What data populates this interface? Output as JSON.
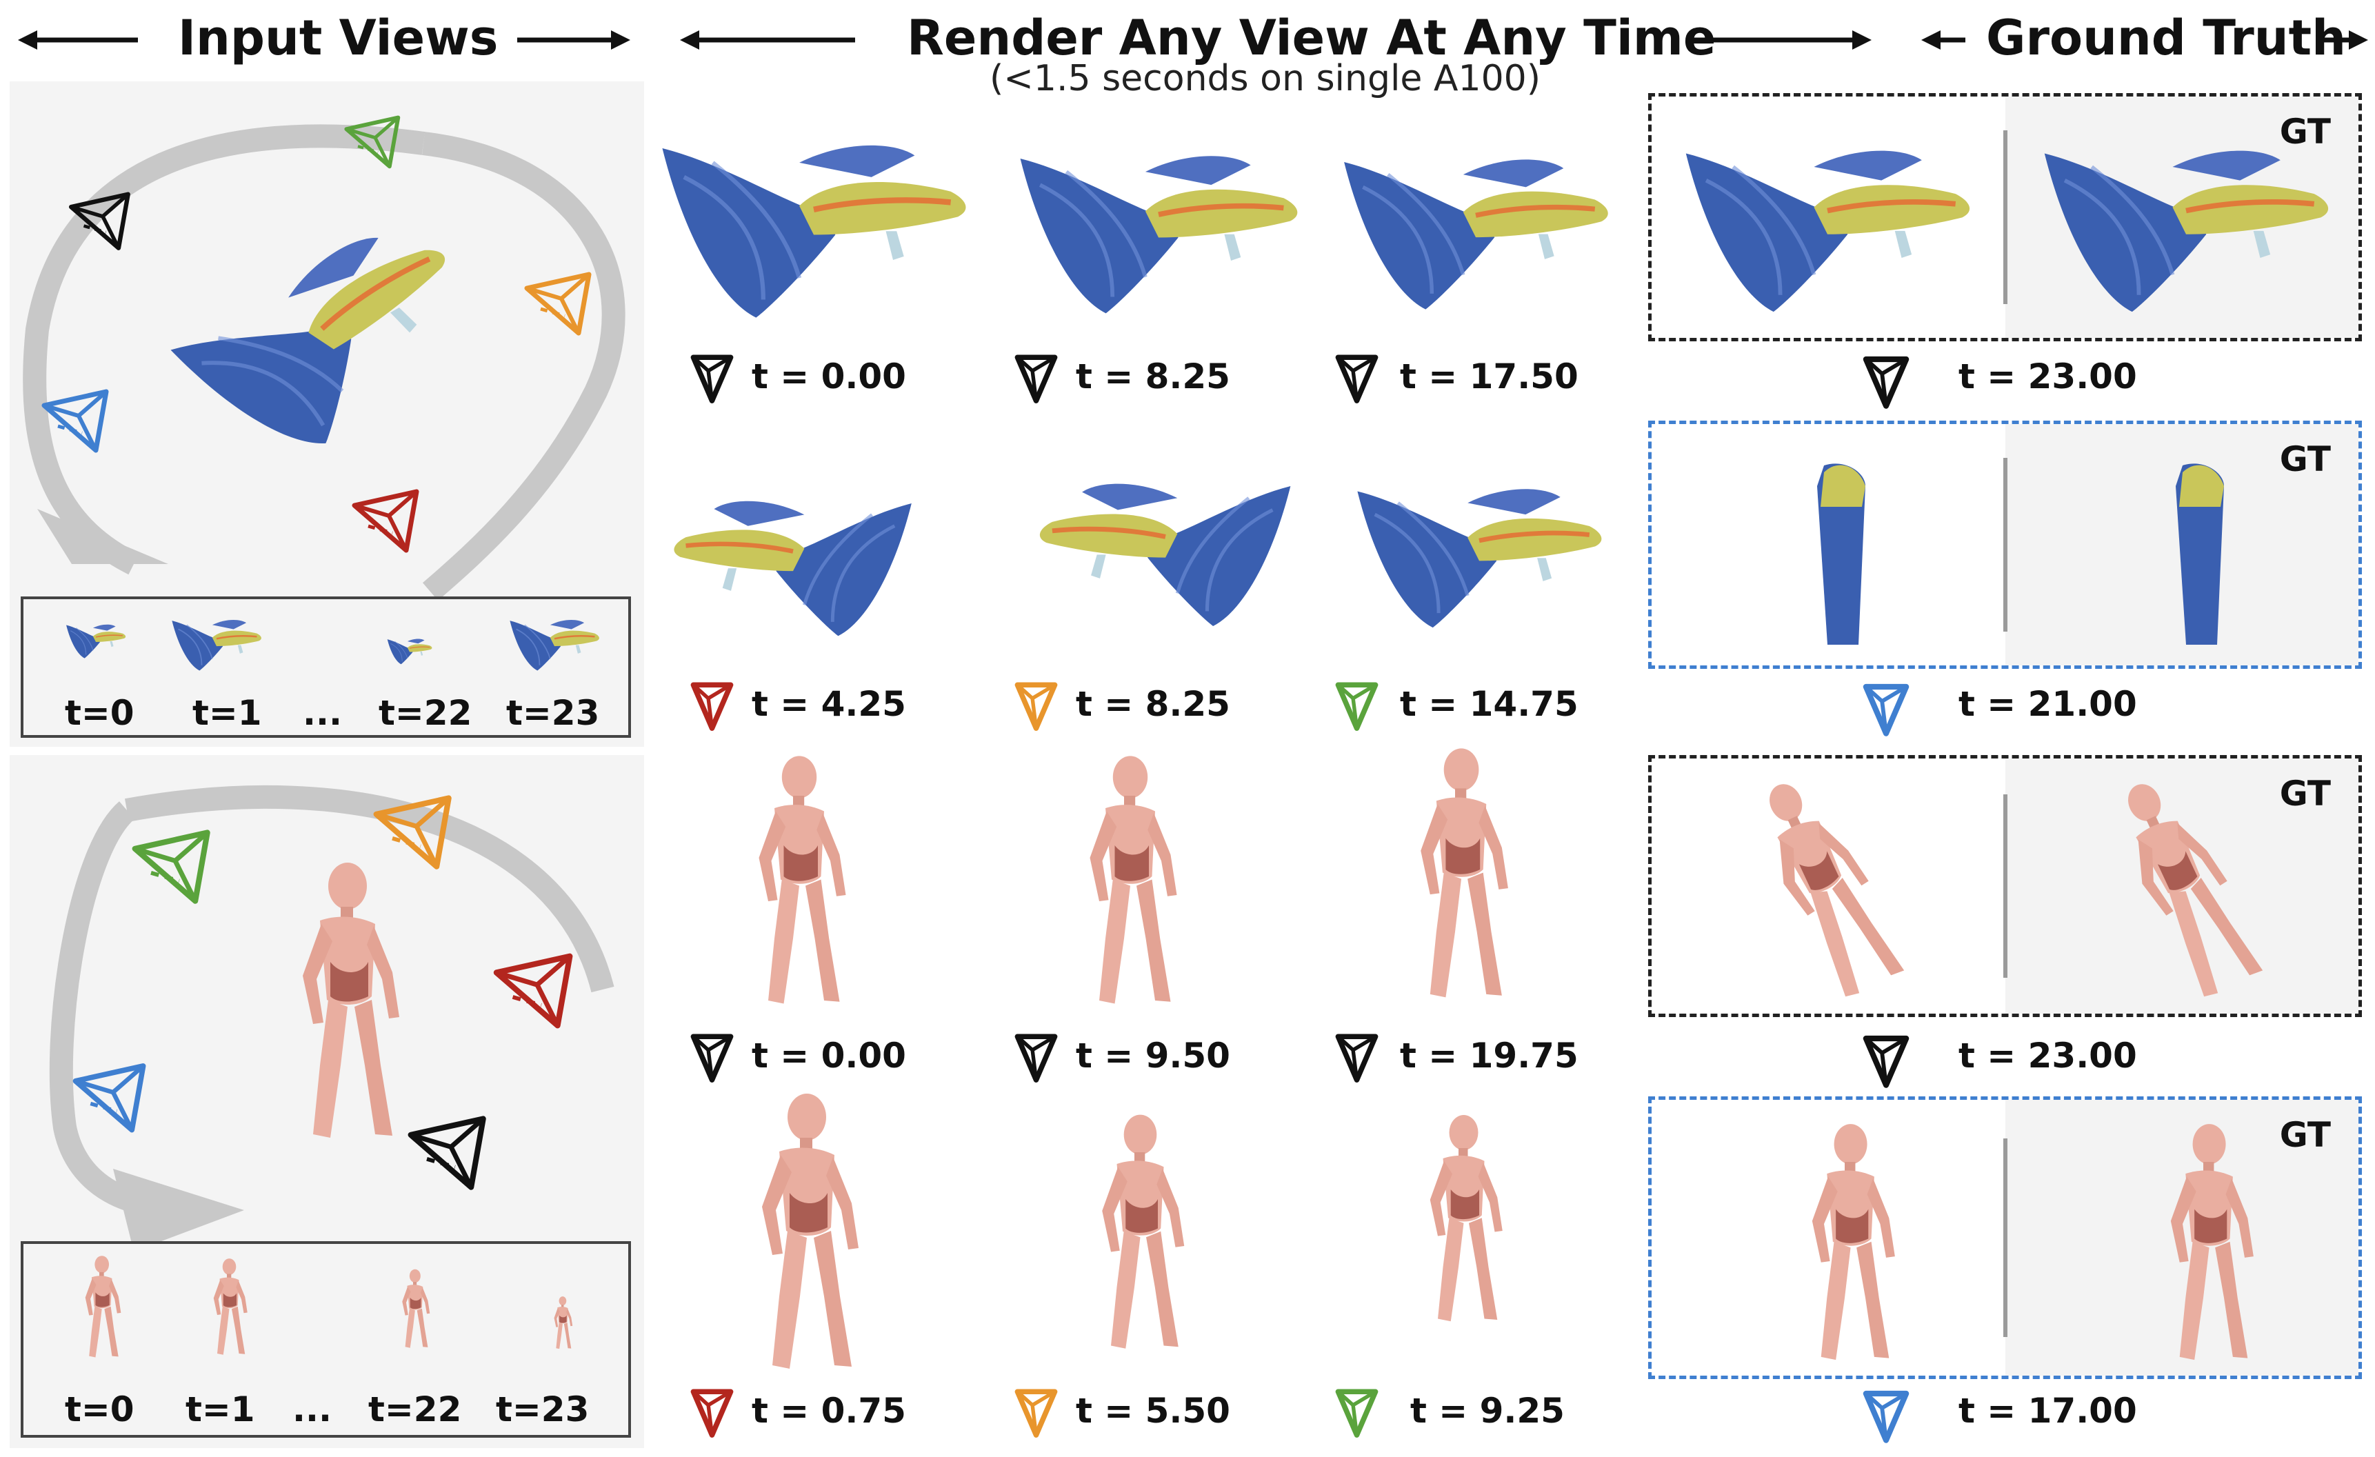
{
  "headers": {
    "input_views": "Input Views",
    "render": "Render Any View At Any Time",
    "render_sub": "(<1.5 seconds on single A100)",
    "ground_truth": "Ground Truth"
  },
  "input_strips": [
    {
      "subject": "fish",
      "labels": [
        "t=0",
        "t=1",
        "...",
        "t=22",
        "t=23"
      ]
    },
    {
      "subject": "mannequin",
      "labels": [
        "t=0",
        "t=1",
        "...",
        "t=22",
        "t=23"
      ]
    }
  ],
  "render_rows": [
    {
      "subject": "fish",
      "cells": [
        {
          "camera_color": "#111111",
          "label": "t = 0.00"
        },
        {
          "camera_color": "#111111",
          "label": "t = 8.25"
        },
        {
          "camera_color": "#111111",
          "label": "t = 17.50"
        }
      ]
    },
    {
      "subject": "fish",
      "cells": [
        {
          "camera_color": "#b3261e",
          "label": "t = 4.25"
        },
        {
          "camera_color": "#e8952c",
          "label": "t = 8.25"
        },
        {
          "camera_color": "#5aa33c",
          "label": "t = 14.75"
        }
      ]
    },
    {
      "subject": "mannequin",
      "cells": [
        {
          "camera_color": "#111111",
          "label": "t = 0.00"
        },
        {
          "camera_color": "#111111",
          "label": "t = 9.50"
        },
        {
          "camera_color": "#111111",
          "label": "t = 19.75"
        }
      ]
    },
    {
      "subject": "mannequin",
      "cells": [
        {
          "camera_color": "#b3261e",
          "label": "t = 0.75"
        },
        {
          "camera_color": "#e8952c",
          "label": "t = 5.50"
        },
        {
          "camera_color": "#5aa33c",
          "label": "t = 9.25"
        }
      ]
    }
  ],
  "gt_rows": [
    {
      "border": "black",
      "camera_color": "#111111",
      "tag": "GT",
      "label": "t = 23.00"
    },
    {
      "border": "blue",
      "camera_color": "#3f7fd0",
      "tag": "GT",
      "label": "t = 21.00"
    },
    {
      "border": "black",
      "camera_color": "#111111",
      "tag": "GT",
      "label": "t = 23.00"
    },
    {
      "border": "blue",
      "camera_color": "#3f7fd0",
      "tag": "GT",
      "label": "t = 17.00"
    }
  ],
  "colors": {
    "black_cam": "#111111",
    "red_cam": "#b3261e",
    "orange_cam": "#e8952c",
    "green_cam": "#5aa33c",
    "blue_cam": "#3f7fd0",
    "panel_bg": "#f4f4f4",
    "arrow_gray": "#c8c8c8",
    "fish_fin": "#3a5fb0",
    "fish_body": "#c9c65a",
    "mannequin": "#e9aea0"
  }
}
